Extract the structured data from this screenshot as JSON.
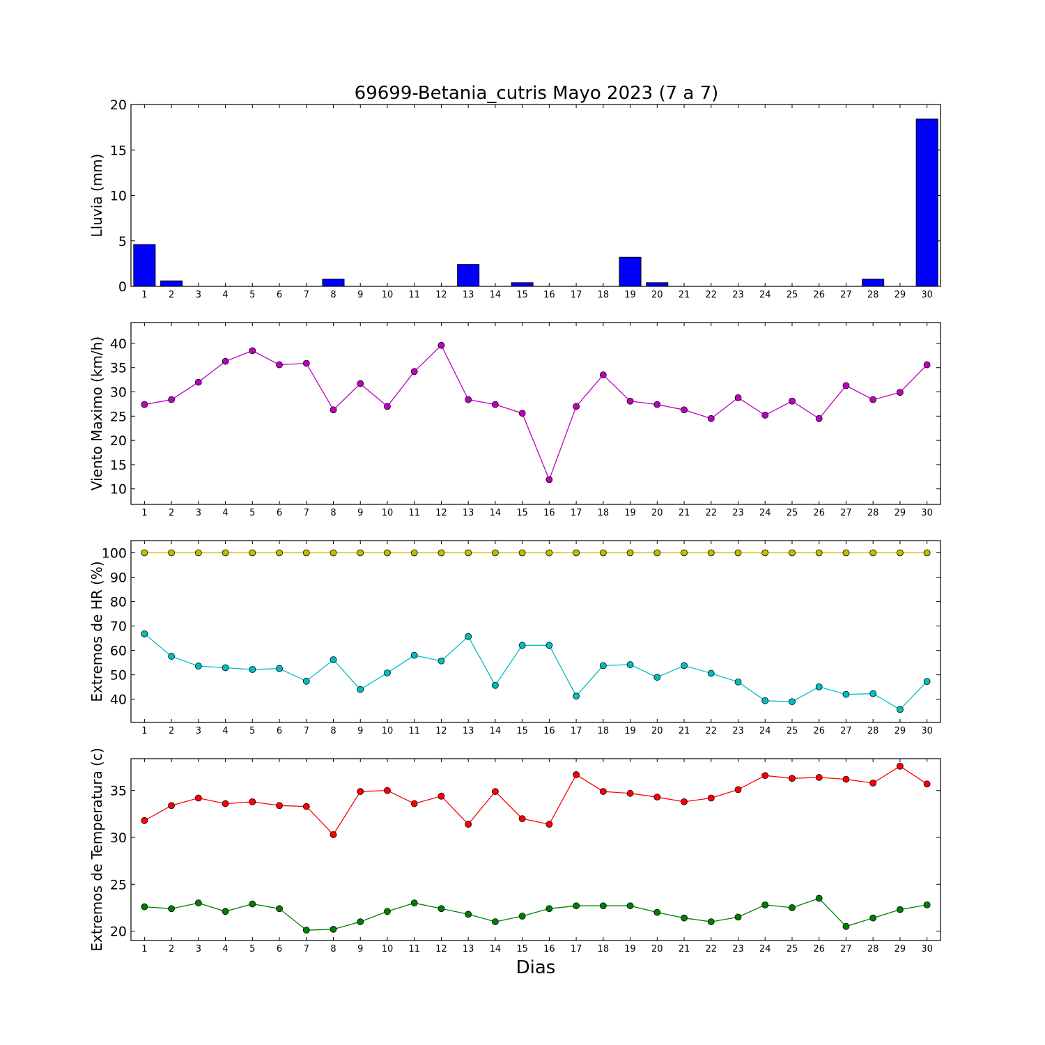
{
  "figure": {
    "title": "69699-Betania_cutris Mayo 2023  (7 a 7)",
    "xlabel": "Dias"
  },
  "chart_data": [
    {
      "type": "bar",
      "ylabel": "Lluvia (mm)",
      "ylim": [
        0,
        20
      ],
      "yticks": [
        0,
        5,
        10,
        15,
        20
      ],
      "x": [
        1,
        2,
        3,
        4,
        5,
        6,
        7,
        8,
        9,
        10,
        11,
        12,
        13,
        14,
        15,
        16,
        17,
        18,
        19,
        20,
        21,
        22,
        23,
        24,
        25,
        26,
        27,
        28,
        29,
        30
      ],
      "series": [
        {
          "color": "#0000ff",
          "values": [
            4.6,
            0.6,
            0,
            0,
            0,
            0,
            0,
            0.8,
            0,
            0,
            0,
            0,
            2.4,
            0,
            0.4,
            0,
            0,
            0,
            3.2,
            0.4,
            0,
            0,
            0,
            0,
            0,
            0,
            0,
            0.8,
            0,
            18.4
          ]
        }
      ],
      "grid": false
    },
    {
      "type": "line",
      "ylabel": "Viento Maximo (km/h)",
      "ylim": [
        6.8,
        44.3
      ],
      "yticks": [
        10,
        15,
        20,
        25,
        30,
        35,
        40
      ],
      "x": [
        1,
        2,
        3,
        4,
        5,
        6,
        7,
        8,
        9,
        10,
        11,
        12,
        13,
        14,
        15,
        16,
        17,
        18,
        19,
        20,
        21,
        22,
        23,
        24,
        25,
        26,
        27,
        28,
        29,
        30
      ],
      "series": [
        {
          "color": "#bf00bf",
          "values": [
            27.4,
            28.4,
            32.0,
            36.3,
            38.5,
            35.6,
            35.9,
            26.3,
            31.7,
            27.0,
            34.2,
            39.6,
            28.4,
            27.4,
            25.6,
            11.9,
            27.0,
            33.5,
            28.1,
            27.4,
            26.3,
            24.5,
            28.8,
            25.2,
            28.1,
            24.5,
            31.3,
            28.4,
            29.9,
            35.6
          ]
        }
      ],
      "grid": false
    },
    {
      "type": "line",
      "ylabel": "Extremos de HR (%)",
      "ylim": [
        30.5,
        105
      ],
      "yticks": [
        40,
        50,
        60,
        70,
        80,
        90,
        100
      ],
      "x": [
        1,
        2,
        3,
        4,
        5,
        6,
        7,
        8,
        9,
        10,
        11,
        12,
        13,
        14,
        15,
        16,
        17,
        18,
        19,
        20,
        21,
        22,
        23,
        24,
        25,
        26,
        27,
        28,
        29,
        30
      ],
      "series": [
        {
          "color": "#bfbf00",
          "values": [
            100,
            100,
            100,
            100,
            100,
            100,
            100,
            100,
            100,
            100,
            100,
            100,
            100,
            100,
            100,
            100,
            100,
            100,
            100,
            100,
            100,
            100,
            100,
            100,
            100,
            100,
            100,
            100,
            100,
            100
          ]
        },
        {
          "color": "#00bfbf",
          "values": [
            66.8,
            57.6,
            53.6,
            52.9,
            52.2,
            52.6,
            47.4,
            56.2,
            44.0,
            50.8,
            58.0,
            55.7,
            65.7,
            45.7,
            62.1,
            62.1,
            41.3,
            53.8,
            54.2,
            49.0,
            53.8,
            50.6,
            47.1,
            39.4,
            39.0,
            45.1,
            42.0,
            42.3,
            35.8,
            47.3
          ]
        }
      ],
      "grid": false
    },
    {
      "type": "line",
      "ylabel": "Extremos de Temperatura (c)",
      "ylim": [
        19,
        38.4
      ],
      "yticks": [
        20,
        25,
        30,
        35
      ],
      "x": [
        1,
        2,
        3,
        4,
        5,
        6,
        7,
        8,
        9,
        10,
        11,
        12,
        13,
        14,
        15,
        16,
        17,
        18,
        19,
        20,
        21,
        22,
        23,
        24,
        25,
        26,
        27,
        28,
        29,
        30
      ],
      "series": [
        {
          "color": "#ff0000",
          "values": [
            31.8,
            33.4,
            34.2,
            33.6,
            33.8,
            33.4,
            33.3,
            30.3,
            34.9,
            35.0,
            33.6,
            34.4,
            31.4,
            34.9,
            32.0,
            31.4,
            36.7,
            34.9,
            34.7,
            34.3,
            33.8,
            34.2,
            35.1,
            36.6,
            36.3,
            36.4,
            36.2,
            35.8,
            37.6,
            35.7
          ]
        },
        {
          "color": "#007f00",
          "values": [
            22.6,
            22.4,
            23.0,
            22.1,
            22.9,
            22.4,
            20.1,
            20.2,
            21.0,
            22.1,
            23.0,
            22.4,
            21.8,
            21.0,
            21.6,
            22.4,
            22.7,
            22.7,
            22.7,
            22.0,
            21.4,
            21.0,
            21.5,
            22.8,
            22.5,
            23.5,
            20.5,
            21.4,
            22.3,
            22.8
          ]
        }
      ],
      "grid": false
    }
  ]
}
